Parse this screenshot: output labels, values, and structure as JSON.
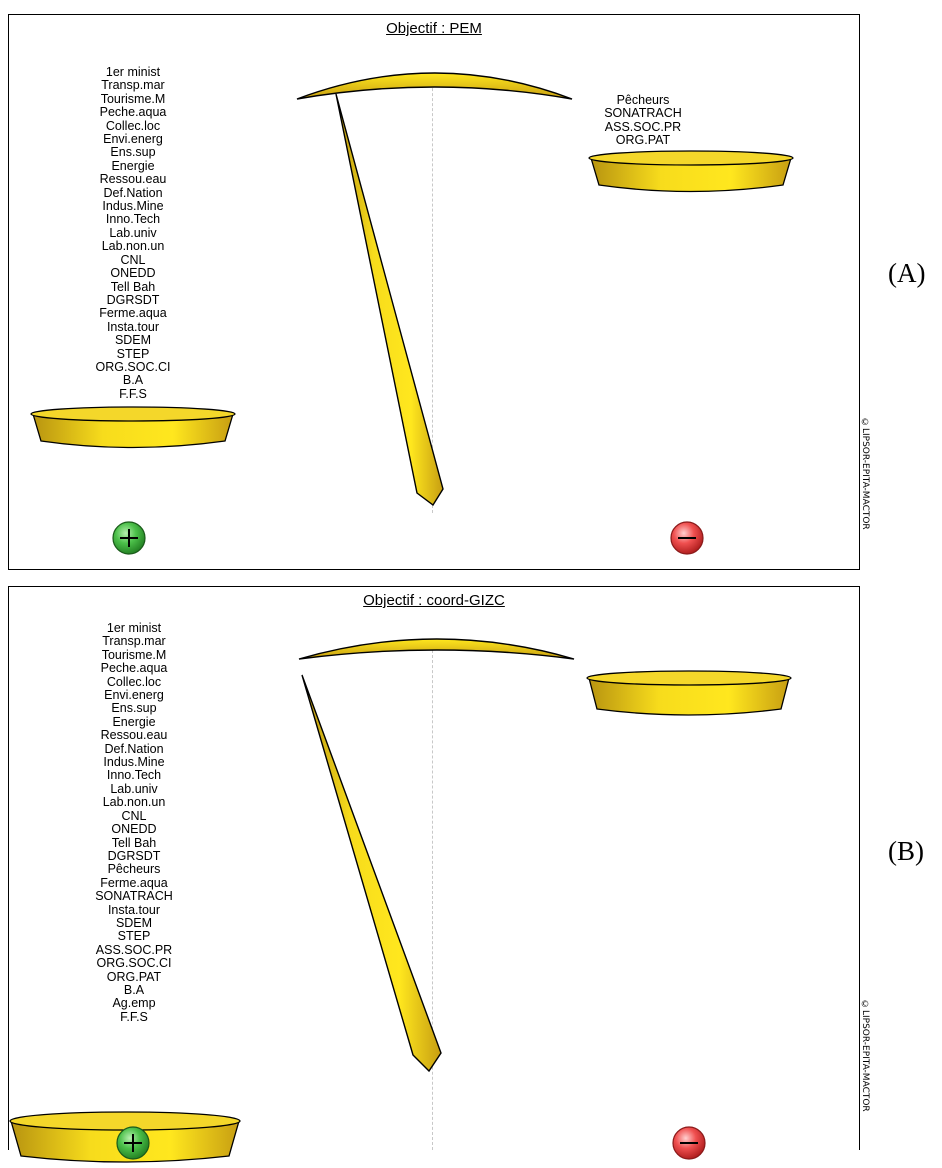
{
  "panels": [
    {
      "label": "(A)",
      "title": "Objectif : PEM",
      "left_list": [
        "1er minist",
        "Transp.mar",
        "Tourisme.M",
        "Peche.aqua",
        "Collec.loc",
        "Envi.energ",
        "Ens.sup",
        "Energie",
        "Ressou.eau",
        "Def.Nation",
        "Indus.Mine",
        "Inno.Tech",
        "Lab.univ",
        "Lab.non.un",
        "CNL",
        "ONEDD",
        "Tell Bah",
        "DGRSDT",
        "Ferme.aqua",
        "Insta.tour",
        "SDEM",
        "STEP",
        "ORG.SOC.CI",
        "B.A",
        "F.F.S"
      ],
      "right_list": [
        "Pêcheurs",
        "SONATRACH",
        "ASS.SOC.PR",
        "ORG.PAT"
      ],
      "plus_icon": "plus-circle-icon",
      "minus_icon": "minus-circle-icon"
    },
    {
      "label": "(B)",
      "title": "Objectif : coord-GIZC",
      "left_list": [
        "1er minist",
        "Transp.mar",
        "Tourisme.M",
        "Peche.aqua",
        "Collec.loc",
        "Envi.energ",
        "Ens.sup",
        "Energie",
        "Ressou.eau",
        "Def.Nation",
        "Indus.Mine",
        "Inno.Tech",
        "Lab.univ",
        "Lab.non.un",
        "CNL",
        "ONEDD",
        "Tell Bah",
        "DGRSDT",
        "Pêcheurs",
        "Ferme.aqua",
        "SONATRACH",
        "Insta.tour",
        "SDEM",
        "STEP",
        "ASS.SOC.PR",
        "ORG.SOC.CI",
        "ORG.PAT",
        "B.A",
        "Ag.emp",
        "F.F.S"
      ],
      "right_list": [],
      "plus_icon": "plus-circle-icon",
      "minus_icon": "minus-circle-icon"
    }
  ],
  "copyright": "©LIPSOR-EPITA-MACTOR",
  "colors": {
    "gold": "#f2d21a",
    "gold_dark": "#b08a10",
    "plus": "#2e9b2e",
    "minus": "#e23838"
  }
}
